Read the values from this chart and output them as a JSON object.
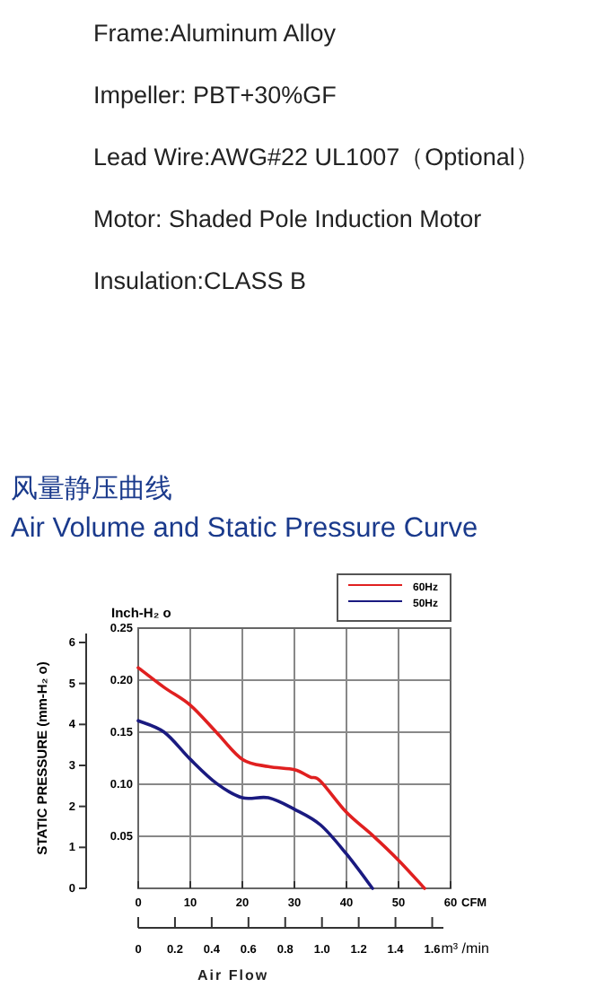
{
  "chart_data": {
    "type": "line",
    "title": "风量静压曲线",
    "subtitle": "Air Volume and Static Pressure Curve",
    "annotations": [
      "Frame:Aluminum Alloy",
      "Impeller: PBT+30%GF",
      "Lead Wire:AWG#22 UL1007（Optional）",
      "Motor: Shaded Pole Induction Motor",
      "Insulation:CLASS B",
      "Air Flow"
    ],
    "xlabel": "CFM",
    "ylabel": "Inch-H₂ o",
    "y2label": "STATIC PRESSURE (mm-H₂ o)",
    "x2label": "m³ /min",
    "xlim": [
      0,
      60
    ],
    "xticks": [
      0,
      10,
      20,
      30,
      40,
      50,
      60
    ],
    "ylim": [
      0,
      0.25
    ],
    "yticks": [
      {
        "value": 0.05,
        "label": "0.05"
      },
      {
        "value": 0.1,
        "label": "0.10"
      },
      {
        "value": 0.15,
        "label": "0.15"
      },
      {
        "value": 0.2,
        "label": "0.20"
      },
      {
        "value": 0.25,
        "label": "0.25"
      }
    ],
    "y2lim": [
      0,
      6.35
    ],
    "y2ticks": [
      0,
      1,
      2,
      3,
      4,
      5,
      6
    ],
    "x2lim": [
      0,
      1.7
    ],
    "x2ticks": [
      0,
      0.2,
      0.4,
      0.6,
      0.8,
      {
        "value": 1.0,
        "label": "1.0"
      },
      1.2,
      1.4,
      1.6
    ],
    "grid": true,
    "legend": "top right",
    "series": [
      {
        "name": "60Hz",
        "color": "#e02020",
        "x": [
          0,
          5,
          10,
          15,
          20,
          25,
          30,
          33,
          35,
          40,
          45,
          50,
          55
        ],
        "values": [
          0.212,
          0.193,
          0.176,
          0.15,
          0.124,
          0.117,
          0.114,
          0.107,
          0.103,
          0.073,
          0.051,
          0.027,
          0.0
        ]
      },
      {
        "name": "50Hz",
        "color": "#1a1a80",
        "x": [
          0,
          5,
          10,
          15,
          20,
          25,
          30,
          35,
          40,
          45
        ],
        "values": [
          0.161,
          0.15,
          0.124,
          0.101,
          0.087,
          0.087,
          0.076,
          0.061,
          0.033,
          0.0
        ]
      }
    ]
  }
}
